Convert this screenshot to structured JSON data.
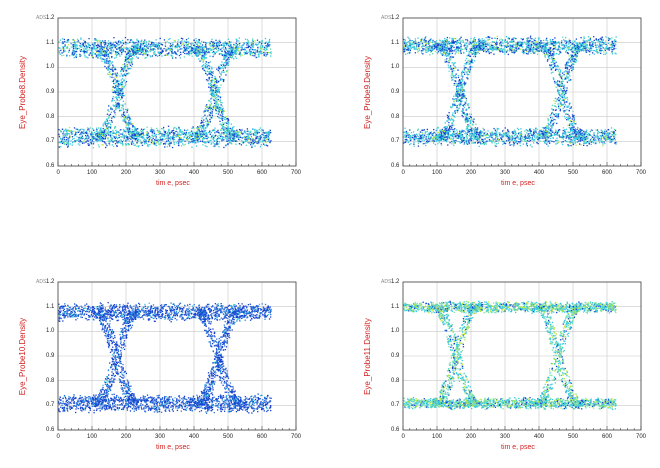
{
  "colors": {
    "axis_label": "#d21e1e",
    "grid": "#c8c8c8",
    "frame": "#404040",
    "density_low": "#1540d0",
    "density_mid": "#35c8e0",
    "density_high": "#b8e838"
  },
  "chart_data": [
    {
      "type": "scatter",
      "brand": "ADS",
      "ylabel": "Eye_Probe8.Density",
      "xlabel": "tim e, psec",
      "xlim": [
        0,
        700
      ],
      "ylim": [
        0.6,
        1.2
      ],
      "xticks": [
        0,
        100,
        200,
        300,
        400,
        500,
        600,
        700
      ],
      "yticks": [
        "0.6",
        "0.7",
        "0.8",
        "0.9",
        "1.0",
        "1.1",
        "1.2"
      ],
      "data_x_range": [
        0,
        625
      ],
      "levels": {
        "low": 0.72,
        "high": 1.08
      },
      "level_spread": 0.045,
      "crossings": [
        {
          "x": 175,
          "y": 0.9
        },
        {
          "x": 460,
          "y": 0.9
        }
      ],
      "density": "mid",
      "grid": true
    },
    {
      "type": "scatter",
      "brand": "ADS",
      "ylabel": "Eye_Probe9.Density",
      "xlabel": "tim e, psec",
      "xlim": [
        0,
        700
      ],
      "ylim": [
        0.6,
        1.2
      ],
      "xticks": [
        0,
        100,
        200,
        300,
        400,
        500,
        600,
        700
      ],
      "yticks": [
        "0.6",
        "0.7",
        "0.8",
        "0.9",
        "1.0",
        "1.1",
        "1.2"
      ],
      "data_x_range": [
        0,
        625
      ],
      "levels": {
        "low": 0.72,
        "high": 1.09
      },
      "level_spread": 0.04,
      "crossings": [
        {
          "x": 165,
          "y": 0.9
        },
        {
          "x": 465,
          "y": 0.9
        }
      ],
      "density": "mid",
      "grid": true
    },
    {
      "type": "scatter",
      "brand": "ADS",
      "ylabel": "Eye_Probe10.Density",
      "xlabel": "tim e, psec",
      "xlim": [
        0,
        700
      ],
      "ylim": [
        0.6,
        1.2
      ],
      "xticks": [
        0,
        100,
        200,
        300,
        400,
        500,
        600,
        700
      ],
      "yticks": [
        "0.6",
        "0.7",
        "0.8",
        "0.9",
        "1.0",
        "1.1",
        "1.2"
      ],
      "data_x_range": [
        0,
        625
      ],
      "levels": {
        "low": 0.71,
        "high": 1.08
      },
      "level_spread": 0.04,
      "crossings": [
        {
          "x": 170,
          "y": 0.9
        },
        {
          "x": 470,
          "y": 0.9
        }
      ],
      "density": "low",
      "grid": true
    },
    {
      "type": "scatter",
      "brand": "ADS",
      "ylabel": "Eye_Probe11.Density",
      "xlabel": "tim e, psec",
      "xlim": [
        0,
        700
      ],
      "ylim": [
        0.6,
        1.2
      ],
      "xticks": [
        0,
        100,
        200,
        300,
        400,
        500,
        600,
        700
      ],
      "yticks": [
        "0.6",
        "0.7",
        "0.8",
        "0.9",
        "1.0",
        "1.1",
        "1.2"
      ],
      "data_x_range": [
        0,
        625
      ],
      "levels": {
        "low": 0.71,
        "high": 1.1
      },
      "level_spread": 0.025,
      "crossings": [
        {
          "x": 155,
          "y": 0.9
        },
        {
          "x": 455,
          "y": 0.9
        }
      ],
      "density": "high",
      "grid": true
    }
  ]
}
